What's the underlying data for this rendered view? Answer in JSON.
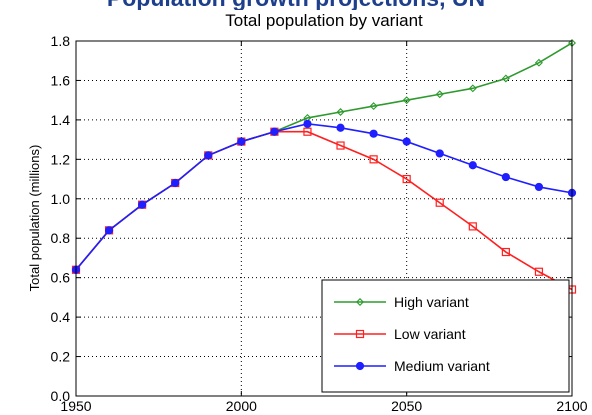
{
  "banner_text": "Population growth projections, UN",
  "colors": {
    "high": "#2e9a2e",
    "low": "#ff2020",
    "medium": "#1f1fff",
    "banner": "#1e3f8c"
  },
  "chart_data": {
    "type": "line",
    "title": "Total population by variant",
    "xlabel": "",
    "ylabel": "Total population (millions)",
    "xlim": [
      1950,
      2100
    ],
    "ylim": [
      0.0,
      1.8
    ],
    "xticks": [
      "1950",
      "2000",
      "2050",
      "2100"
    ],
    "yticks": [
      "0.0",
      "0.2",
      "0.4",
      "0.6",
      "0.8",
      "1.0",
      "1.2",
      "1.4",
      "1.6",
      "1.8"
    ],
    "grid": true,
    "legend_position": "bottom-right",
    "series": [
      {
        "name": "High variant",
        "color_key": "high",
        "marker": "diamond",
        "x": [
          1950,
          1960,
          1970,
          1980,
          1990,
          2000,
          2010,
          2020,
          2030,
          2040,
          2050,
          2060,
          2070,
          2080,
          2090,
          2100
        ],
        "y": [
          0.64,
          0.84,
          0.97,
          1.08,
          1.22,
          1.29,
          1.34,
          1.41,
          1.44,
          1.47,
          1.5,
          1.53,
          1.56,
          1.61,
          1.69,
          1.79
        ]
      },
      {
        "name": "Low variant",
        "color_key": "low",
        "marker": "square",
        "x": [
          1950,
          1960,
          1970,
          1980,
          1990,
          2000,
          2010,
          2020,
          2030,
          2040,
          2050,
          2060,
          2070,
          2080,
          2090,
          2100
        ],
        "y": [
          0.64,
          0.84,
          0.97,
          1.08,
          1.22,
          1.29,
          1.34,
          1.34,
          1.27,
          1.2,
          1.1,
          0.98,
          0.86,
          0.73,
          0.63,
          0.54
        ]
      },
      {
        "name": "Medium variant",
        "color_key": "medium",
        "marker": "circle",
        "x": [
          1950,
          1960,
          1970,
          1980,
          1990,
          2000,
          2010,
          2020,
          2030,
          2040,
          2050,
          2060,
          2070,
          2080,
          2090,
          2100
        ],
        "y": [
          0.64,
          0.84,
          0.97,
          1.08,
          1.22,
          1.29,
          1.34,
          1.38,
          1.36,
          1.33,
          1.29,
          1.23,
          1.17,
          1.11,
          1.06,
          1.03
        ]
      }
    ]
  }
}
